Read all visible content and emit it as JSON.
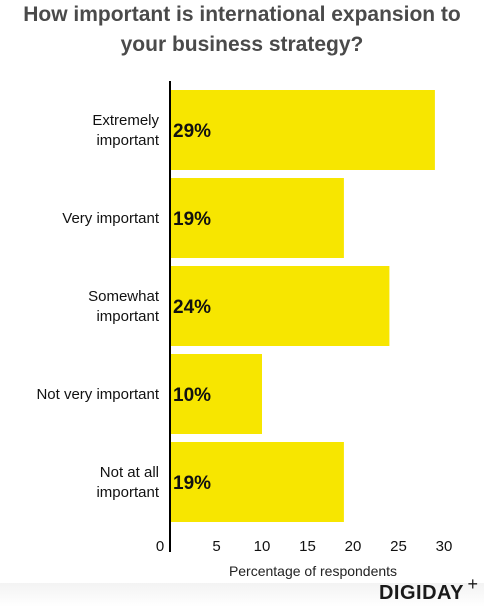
{
  "chart_data": {
    "type": "bar",
    "orientation": "horizontal",
    "title_lines": [
      "How important is international expansion to",
      "your business strategy?"
    ],
    "categories": [
      [
        "Extremely",
        "important"
      ],
      [
        "Very important"
      ],
      [
        "Somewhat",
        "important"
      ],
      [
        "Not very important"
      ],
      [
        "Not at all",
        "important"
      ]
    ],
    "values": [
      29,
      19,
      24,
      10,
      19
    ],
    "value_labels": [
      "29%",
      "19%",
      "24%",
      "10%",
      "19%"
    ],
    "xlabel": "Percentage of respondents",
    "xlim": [
      0,
      30
    ],
    "xticks": [
      0,
      5,
      10,
      15,
      20,
      25,
      30
    ],
    "grid": false,
    "bar_color": "#f7e600"
  },
  "brand": {
    "name": "DIGIDAY",
    "mark": "+"
  }
}
